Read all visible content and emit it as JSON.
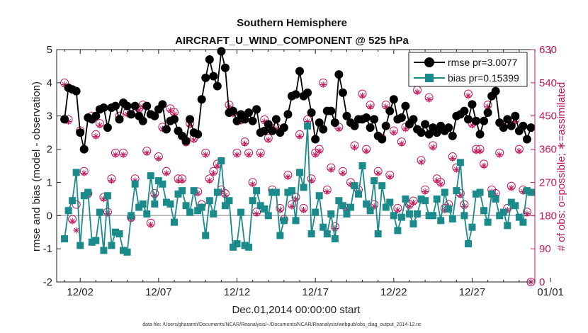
{
  "chart_data": {
    "type": "line",
    "title": "Southern Hemisphere",
    "subtitle": "AIRCRAFT_U_WIND_COMPONENT @ 525 hPa",
    "xlabel": "Dec.01,2014 00:00:00 start",
    "ylabel": "rmse and bias (model - observation)",
    "ylabel_right": "# of obs: o=possible; ∗=assimilated",
    "footnote": "data file: /Users/gharamti/Documents/NCAR/Reanalysis/~/Documents/NCAR/Reanalysis/webpub/obs_diag_output_2014-12.nc",
    "xlim": [
      0.5,
      31.0
    ],
    "ylim": [
      -2,
      5
    ],
    "ylim_right": [
      0,
      630
    ],
    "x_ticks": [
      2,
      7,
      12,
      17,
      22,
      27,
      32
    ],
    "x_tick_labels": [
      "12/02",
      "12/07",
      "12/12",
      "12/17",
      "12/22",
      "12/27",
      "01/01"
    ],
    "y_ticks": [
      -2,
      -1,
      0,
      1,
      2,
      3,
      4,
      5
    ],
    "y_ticks_right": [
      0,
      90,
      180,
      270,
      360,
      450,
      540,
      630
    ],
    "grid": false,
    "legend_position": "top-right",
    "colors": {
      "rmse": "#000000",
      "bias": "#1a8a8a",
      "obs": "#c0185c",
      "zero_line": "#b0b0b0"
    },
    "series": [
      {
        "name": "rmse pr=3.0077",
        "axis": "left",
        "marker": "circle",
        "x": [
          1.0,
          1.25,
          1.5,
          1.75,
          2.0,
          2.25,
          2.5,
          2.75,
          3.0,
          3.25,
          3.5,
          3.75,
          4.0,
          4.25,
          4.5,
          4.75,
          5.0,
          5.25,
          5.5,
          5.75,
          6.0,
          6.25,
          6.5,
          6.75,
          7.0,
          7.25,
          7.5,
          7.75,
          8.0,
          8.25,
          8.5,
          8.75,
          9.0,
          9.25,
          9.5,
          9.75,
          10.0,
          10.25,
          10.5,
          10.75,
          11.0,
          11.25,
          11.5,
          11.75,
          12.0,
          12.25,
          12.5,
          12.75,
          13.0,
          13.25,
          13.5,
          13.75,
          14.0,
          14.25,
          14.5,
          14.75,
          15.0,
          15.25,
          15.5,
          15.75,
          16.0,
          16.25,
          16.5,
          16.75,
          17.0,
          17.25,
          17.5,
          17.75,
          18.0,
          18.25,
          18.5,
          18.75,
          19.0,
          19.25,
          19.5,
          19.75,
          20.0,
          20.25,
          20.5,
          20.75,
          21.0,
          21.25,
          21.5,
          21.75,
          22.0,
          22.25,
          22.5,
          22.75,
          23.0,
          23.25,
          23.5,
          23.75,
          24.0,
          24.25,
          24.5,
          24.75,
          25.0,
          25.25,
          25.5,
          25.75,
          26.0,
          26.25,
          26.5,
          26.75,
          27.0,
          27.25,
          27.5,
          27.75,
          28.0,
          28.25,
          28.5,
          28.75,
          29.0,
          29.25,
          29.5,
          29.75,
          30.0,
          30.25,
          30.5,
          30.75
        ],
        "values": [
          2.9,
          3.85,
          3.8,
          3.75,
          2.5,
          2.0,
          2.95,
          2.9,
          3.0,
          3.2,
          3.25,
          2.65,
          3.25,
          3.3,
          2.9,
          3.4,
          3.3,
          3.05,
          3.3,
          3.0,
          2.85,
          3.3,
          3.05,
          3.0,
          3.2,
          3.35,
          2.6,
          2.85,
          2.9,
          2.55,
          2.4,
          2.25,
          2.9,
          2.5,
          2.45,
          3.5,
          4.15,
          4.7,
          4.2,
          3.9,
          4.95,
          4.45,
          3.1,
          3.15,
          2.85,
          3.05,
          2.9,
          3.1,
          2.85,
          3.2,
          2.5,
          2.55,
          2.75,
          2.55,
          2.9,
          2.5,
          2.65,
          3.05,
          3.6,
          3.65,
          4.35,
          3.6,
          3.7,
          3.1,
          2.3,
          2.8,
          2.6,
          3.15,
          3.15,
          2.8,
          4.25,
          3.7,
          3.0,
          2.8,
          2.7,
          2.9,
          2.9,
          2.95,
          2.65,
          2.9,
          2.4,
          2.3,
          2.7,
          3.15,
          3.5,
          2.9,
          2.95,
          3.3,
          2.75,
          2.9,
          2.6,
          2.5,
          2.75,
          2.45,
          2.65,
          2.5,
          2.7,
          2.55,
          2.65,
          2.4,
          3.0,
          3.05,
          3.15,
          2.9,
          3.35,
          2.85,
          2.45,
          2.85,
          3.1,
          3.6,
          3.75,
          2.8,
          2.65,
          2.9,
          2.7,
          3.0,
          2.55,
          2.7,
          2.3,
          2.65
        ]
      },
      {
        "name": "bias pr=0.15399",
        "axis": "left",
        "marker": "square",
        "x": [
          1.0,
          1.25,
          1.5,
          1.75,
          2.0,
          2.25,
          2.5,
          2.75,
          3.0,
          3.25,
          3.5,
          3.75,
          4.0,
          4.25,
          4.5,
          4.75,
          5.0,
          5.25,
          5.5,
          5.75,
          6.0,
          6.25,
          6.5,
          6.75,
          7.0,
          7.25,
          7.5,
          7.75,
          8.0,
          8.25,
          8.5,
          8.75,
          9.0,
          9.25,
          9.5,
          9.75,
          10.0,
          10.25,
          10.5,
          10.75,
          11.0,
          11.25,
          11.5,
          11.75,
          12.0,
          12.25,
          12.5,
          12.75,
          13.0,
          13.25,
          13.5,
          13.75,
          14.0,
          14.25,
          14.5,
          14.75,
          15.0,
          15.25,
          15.5,
          15.75,
          16.0,
          16.25,
          16.5,
          16.75,
          17.0,
          17.25,
          17.5,
          17.75,
          18.0,
          18.25,
          18.5,
          18.75,
          19.0,
          19.25,
          19.5,
          19.75,
          20.0,
          20.25,
          20.5,
          20.75,
          21.0,
          21.25,
          21.5,
          21.75,
          22.0,
          22.25,
          22.5,
          22.75,
          23.0,
          23.25,
          23.5,
          23.75,
          24.0,
          24.25,
          24.5,
          24.75,
          25.0,
          25.25,
          25.5,
          25.75,
          26.0,
          26.25,
          26.5,
          26.75,
          27.0,
          27.25,
          27.5,
          27.75,
          28.0,
          28.25,
          28.5,
          28.75,
          29.0,
          29.25,
          29.5,
          29.75,
          30.0,
          30.25,
          30.5,
          30.75
        ],
        "values": [
          -0.7,
          0.15,
          0.45,
          1.3,
          -0.9,
          0.6,
          0.7,
          -0.8,
          -0.75,
          0.1,
          -1.05,
          0.6,
          -0.9,
          -0.5,
          -0.55,
          -1.05,
          -1.1,
          0.0,
          0.95,
          0.25,
          0.35,
          0.05,
          1.2,
          0.35,
          1.05,
          0.95,
          0.4,
          0.35,
          -0.2,
          0.65,
          0.75,
          0.3,
          0.1,
          0.75,
          0.15,
          0.25,
          -0.6,
          0.45,
          0.05,
          0.7,
          1.65,
          0.3,
          0.45,
          -0.95,
          -0.85,
          0.1,
          -0.9,
          -0.95,
          0.45,
          0.75,
          0.3,
          0.2,
          0.0,
          0.7,
          0.7,
          -0.6,
          -0.15,
          0.7,
          0.75,
          -0.15,
          1.3,
          0.85,
          2.7,
          -0.55,
          0.1,
          0.6,
          -0.35,
          -0.55,
          0.05,
          -0.7,
          0.45,
          0.3,
          0.05,
          0.25,
          0.9,
          0.65,
          1.5,
          0.35,
          0.15,
          1.05,
          -0.55,
          0.9,
          0.25,
          0.4,
          0.0,
          -0.45,
          -0.05,
          0.5,
          0.05,
          -0.25,
          0.05,
          0.5,
          0.45,
          0.0,
          0.0,
          0.5,
          -0.15,
          0.7,
          0.2,
          -0.1,
          0.75,
          1.6,
          0.0,
          -0.85,
          -0.35,
          0.65,
          0.7,
          0.15,
          -0.2,
          0.65,
          0.5,
          0.0,
          0.1,
          -0.3,
          0.4,
          0.3,
          -0.05,
          -0.2,
          0.75,
          0.7
        ]
      },
      {
        "name": "possible",
        "axis": "right",
        "marker": "o",
        "x": [
          1.0,
          1.25,
          1.5,
          1.75,
          2.0,
          2.25,
          2.5,
          2.75,
          3.0,
          3.25,
          3.5,
          3.75,
          4.0,
          4.25,
          4.5,
          4.75,
          5.0,
          5.25,
          5.5,
          5.75,
          6.0,
          6.25,
          6.5,
          6.75,
          7.0,
          7.25,
          7.5,
          7.75,
          8.0,
          8.25,
          8.5,
          8.75,
          9.0,
          9.25,
          9.5,
          9.75,
          10.0,
          10.25,
          10.5,
          10.75,
          11.0,
          11.25,
          11.5,
          11.75,
          12.0,
          12.25,
          12.5,
          12.75,
          13.0,
          13.25,
          13.5,
          13.75,
          14.0,
          14.25,
          14.5,
          14.75,
          15.0,
          15.25,
          15.5,
          15.75,
          16.0,
          16.25,
          16.5,
          16.75,
          17.0,
          17.25,
          17.5,
          17.75,
          18.0,
          18.25,
          18.5,
          18.75,
          19.0,
          19.25,
          19.5,
          19.75,
          20.0,
          20.25,
          20.5,
          20.75,
          21.0,
          21.25,
          21.5,
          21.75,
          22.0,
          22.25,
          22.5,
          22.75,
          23.0,
          23.25,
          23.5,
          23.75,
          24.0,
          24.25,
          24.5,
          24.75,
          25.0,
          25.25,
          25.5,
          25.75,
          26.0,
          26.25,
          26.5,
          26.75,
          27.0,
          27.25,
          27.5,
          27.75,
          28.0,
          28.25,
          28.5,
          28.75,
          29.0,
          29.25,
          29.5,
          29.75,
          30.0,
          30.25,
          30.5,
          30.75
        ],
        "values": [
          540,
          440,
          170,
          210,
          410,
          300,
          240,
          450,
          400,
          430,
          230,
          190,
          280,
          350,
          450,
          350,
          460,
          175,
          280,
          470,
          480,
          355,
          160,
          240,
          340,
          420,
          300,
          470,
          460,
          280,
          280,
          380,
          430,
          390,
          245,
          210,
          350,
          280,
          300,
          320,
          250,
          240,
          480,
          460,
          350,
          440,
          380,
          350,
          270,
          190,
          350,
          440,
          390,
          250,
          420,
          200,
          170,
          290,
          210,
          230,
          400,
          200,
          440,
          280,
          350,
          360,
          540,
          250,
          310,
          150,
          420,
          300,
          200,
          270,
          370,
          250,
          510,
          360,
          480,
          210,
          300,
          390,
          480,
          290,
          410,
          200,
          380,
          420,
          210,
          220,
          520,
          330,
          250,
          500,
          370,
          280,
          270,
          200,
          210,
          340,
          310,
          240,
          210,
          510,
          430,
          360,
          360,
          320,
          480,
          250,
          240,
          350,
          420,
          200,
          260,
          440,
          360,
          250,
          190,
          0
        ]
      },
      {
        "name": "assimilated",
        "axis": "right",
        "marker": "*",
        "x": [
          1.0,
          1.25,
          1.5,
          1.75,
          2.0,
          2.25,
          2.5,
          2.75,
          3.0,
          3.25,
          3.5,
          3.75,
          4.0,
          4.25,
          4.5,
          4.75,
          5.0,
          5.25,
          5.5,
          5.75,
          6.0,
          6.25,
          6.5,
          6.75,
          7.0,
          7.25,
          7.5,
          7.75,
          8.0,
          8.25,
          8.5,
          8.75,
          9.0,
          9.25,
          9.5,
          9.75,
          10.0,
          10.25,
          10.5,
          10.75,
          11.0,
          11.25,
          11.5,
          11.75,
          12.0,
          12.25,
          12.5,
          12.75,
          13.0,
          13.25,
          13.5,
          13.75,
          14.0,
          14.25,
          14.5,
          14.75,
          15.0,
          15.25,
          15.5,
          15.75,
          16.0,
          16.25,
          16.5,
          16.75,
          17.0,
          17.25,
          17.5,
          17.75,
          18.0,
          18.25,
          18.5,
          18.75,
          19.0,
          19.25,
          19.5,
          19.75,
          20.0,
          20.25,
          20.5,
          20.75,
          21.0,
          21.25,
          21.5,
          21.75,
          22.0,
          22.25,
          22.5,
          22.75,
          23.0,
          23.25,
          23.5,
          23.75,
          24.0,
          24.25,
          24.5,
          24.75,
          25.0,
          25.25,
          25.5,
          25.75,
          26.0,
          26.25,
          26.5,
          26.75,
          27.0,
          27.25,
          27.5,
          27.75,
          28.0,
          28.25,
          28.5,
          28.75,
          29.0,
          29.25,
          29.5,
          29.75,
          30.0,
          30.25,
          30.5,
          30.75
        ],
        "values": [
          535,
          435,
          165,
          140,
          405,
          295,
          235,
          445,
          395,
          425,
          225,
          185,
          275,
          345,
          445,
          345,
          455,
          170,
          275,
          465,
          475,
          350,
          155,
          235,
          335,
          415,
          295,
          465,
          455,
          275,
          275,
          375,
          425,
          385,
          240,
          205,
          345,
          275,
          295,
          315,
          245,
          235,
          475,
          455,
          345,
          435,
          375,
          345,
          265,
          185,
          345,
          435,
          385,
          245,
          415,
          195,
          165,
          285,
          205,
          225,
          395,
          195,
          435,
          275,
          345,
          355,
          535,
          245,
          305,
          145,
          415,
          295,
          195,
          265,
          365,
          245,
          505,
          355,
          475,
          205,
          295,
          385,
          475,
          285,
          405,
          195,
          375,
          415,
          205,
          215,
          515,
          325,
          245,
          495,
          365,
          275,
          265,
          195,
          205,
          335,
          305,
          235,
          205,
          505,
          425,
          355,
          355,
          315,
          475,
          245,
          235,
          345,
          415,
          195,
          255,
          435,
          355,
          245,
          185,
          0
        ]
      }
    ]
  }
}
